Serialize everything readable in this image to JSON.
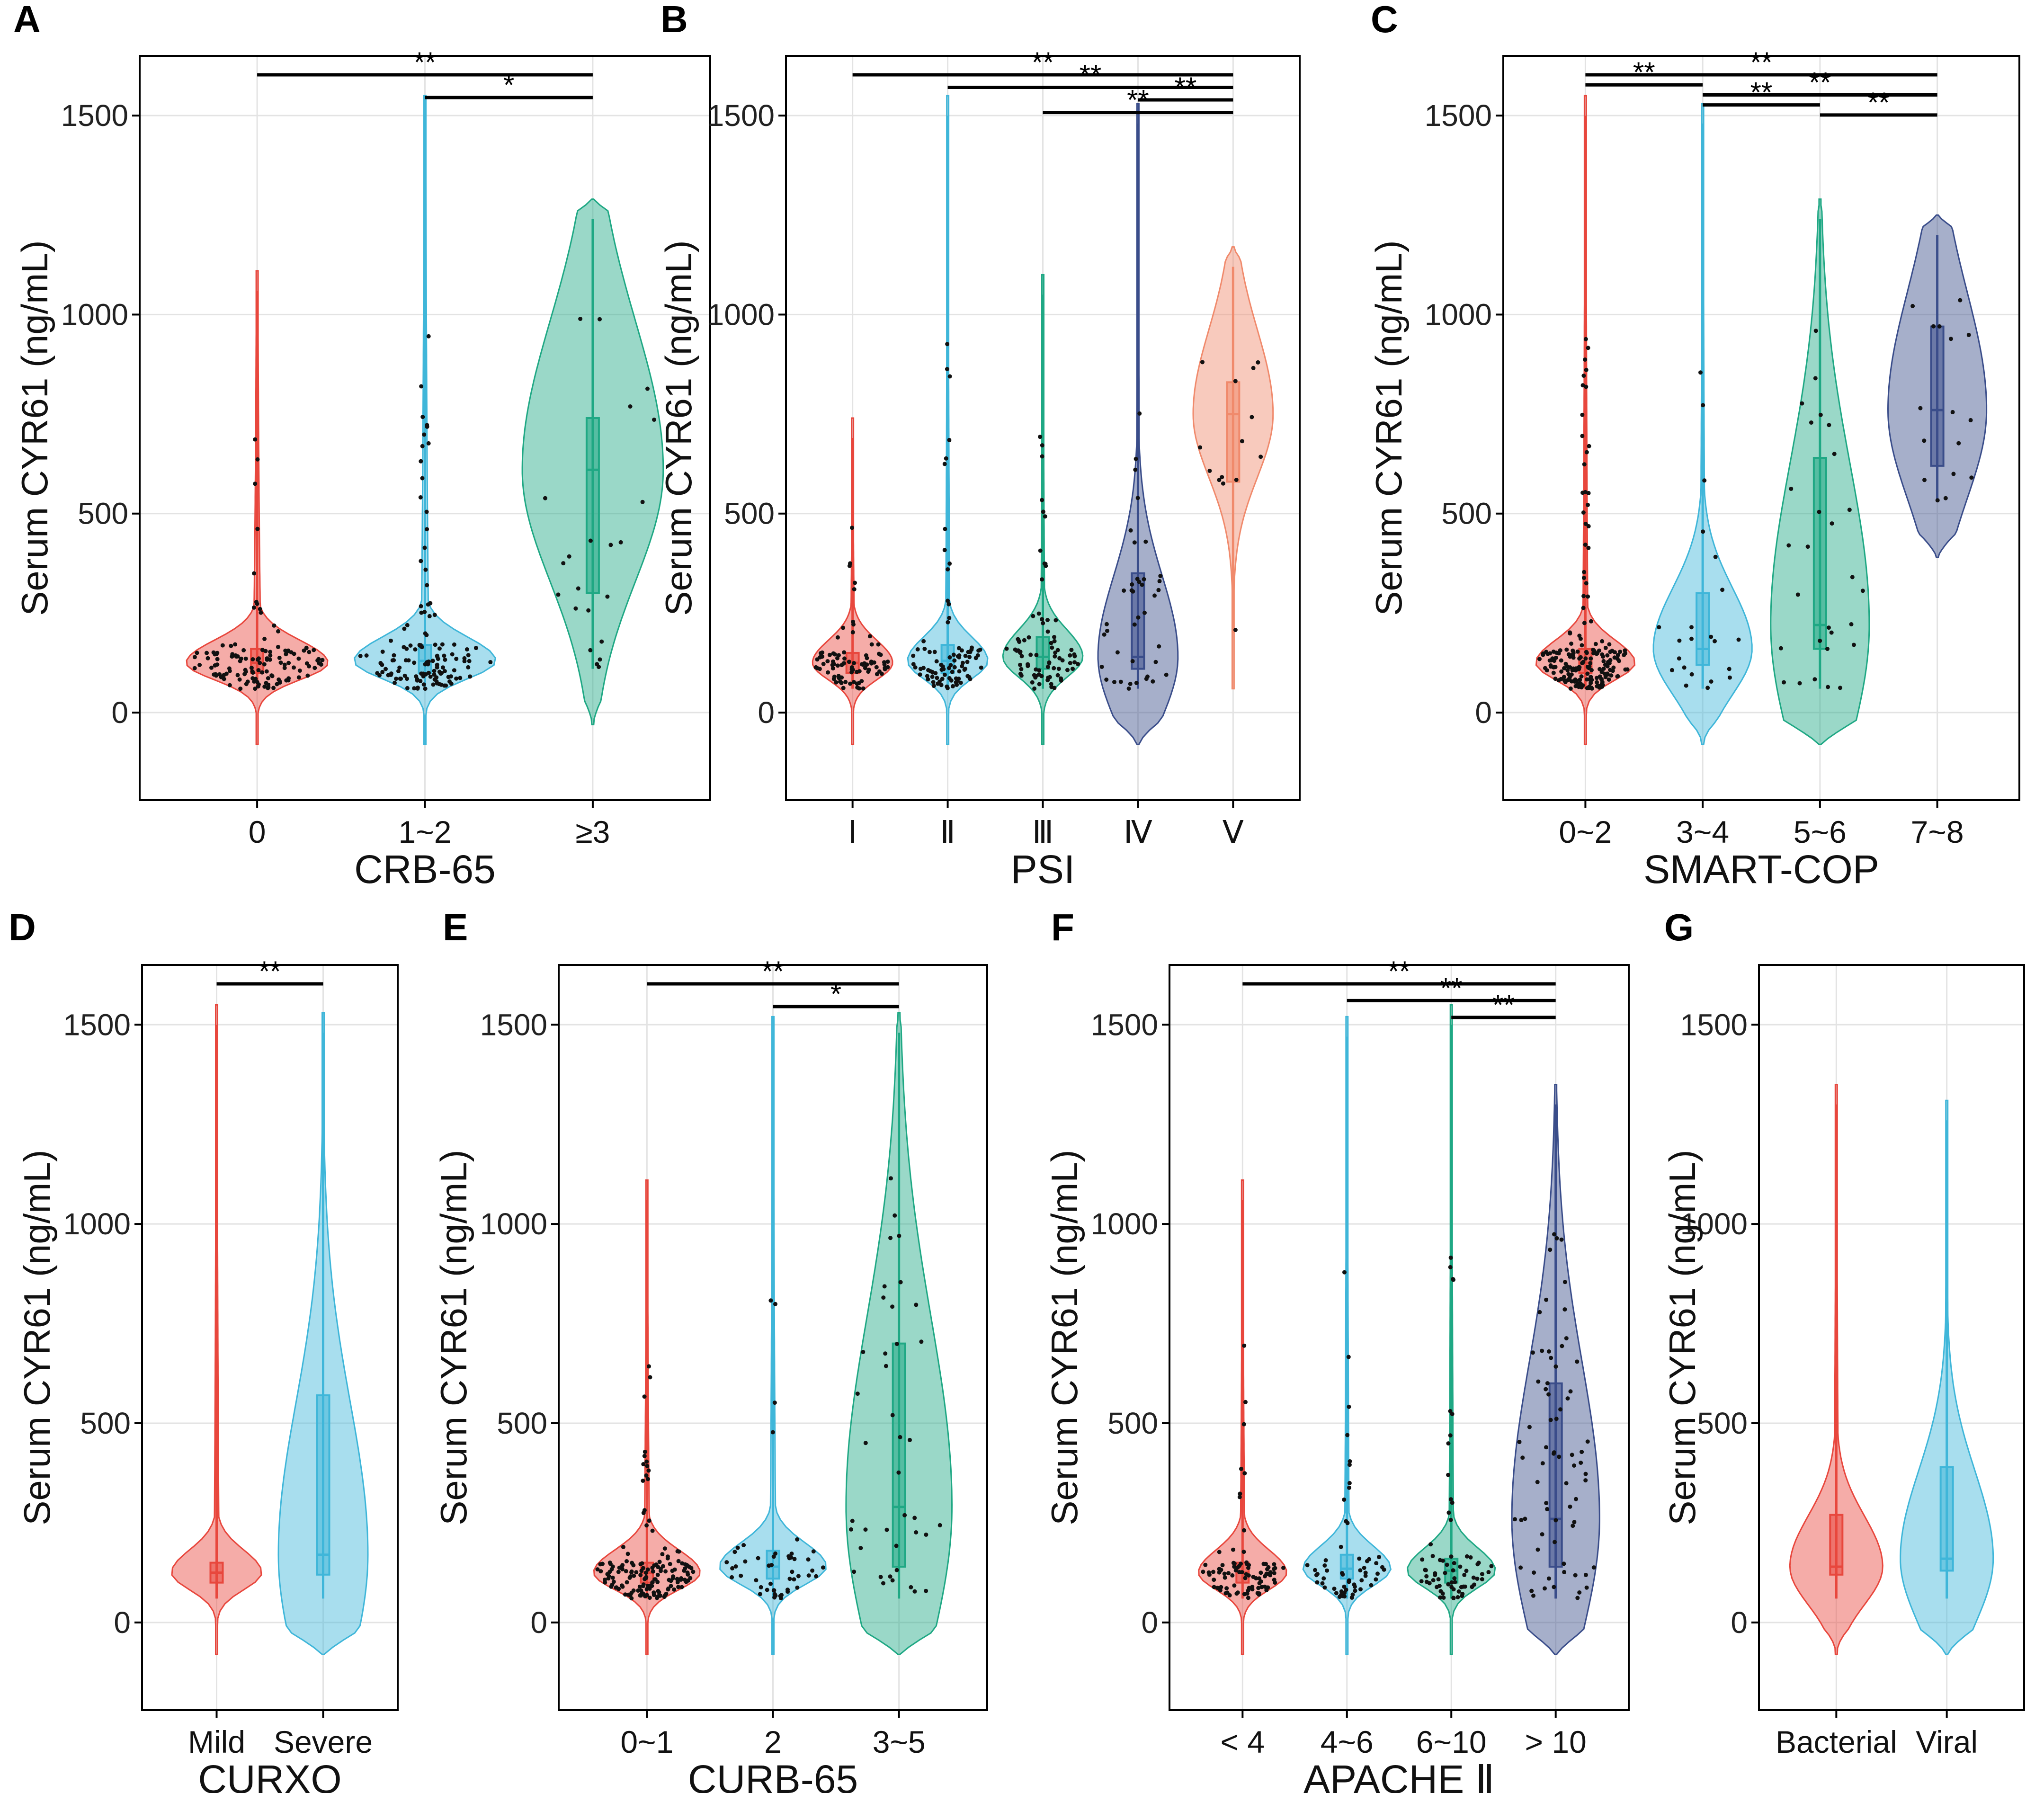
{
  "figure": {
    "colors": {
      "red": "#e8473d",
      "cyan": "#3fb6d9",
      "teal": "#1fa884",
      "navy": "#3a4d8a",
      "salmon": "#f08a6c",
      "points": "#111111"
    }
  },
  "chart_data": [
    {
      "panel": "A",
      "type": "violin",
      "xlabel": "CRB-65",
      "ylabel": "Serum CYR61 (ng/mL)",
      "ylim": [
        -220,
        1650
      ],
      "yticks": [
        0,
        500,
        1000,
        1500
      ],
      "categories": [
        "0",
        "1~2",
        "≥3"
      ],
      "series": [
        {
          "name": "0",
          "color": "red",
          "min": 60,
          "q1": 100,
          "median": 125,
          "q3": 160,
          "max": 1060,
          "n": 130
        },
        {
          "name": "1~2",
          "color": "cyan",
          "min": 60,
          "q1": 100,
          "median": 130,
          "q3": 170,
          "max": 1500,
          "n": 130
        },
        {
          "name": "≥3",
          "color": "teal",
          "min": 110,
          "q1": 300,
          "median": 610,
          "q3": 740,
          "max": 1240,
          "n": 22
        }
      ],
      "significance": [
        {
          "from": 0,
          "to": 2,
          "label": "**"
        },
        {
          "from": 1,
          "to": 2,
          "label": "*"
        }
      ]
    },
    {
      "panel": "B",
      "type": "violin",
      "xlabel": "PSI",
      "ylabel": "Serum CYR61 (ng/mL)",
      "ylim": [
        -220,
        1650
      ],
      "yticks": [
        0,
        500,
        1000,
        1500
      ],
      "categories": [
        "Ⅰ",
        "Ⅱ",
        "Ⅲ",
        "Ⅳ",
        "Ⅴ"
      ],
      "series": [
        {
          "name": "Ⅰ",
          "color": "red",
          "min": 60,
          "q1": 100,
          "median": 125,
          "q3": 150,
          "max": 690,
          "n": 90
        },
        {
          "name": "Ⅱ",
          "color": "cyan",
          "min": 60,
          "q1": 100,
          "median": 130,
          "q3": 170,
          "max": 1500,
          "n": 90
        },
        {
          "name": "Ⅲ",
          "color": "teal",
          "min": 60,
          "q1": 110,
          "median": 140,
          "q3": 190,
          "max": 1050,
          "n": 80
        },
        {
          "name": "Ⅳ",
          "color": "navy",
          "min": 60,
          "q1": 110,
          "median": 140,
          "q3": 350,
          "max": 1480,
          "n": 40
        },
        {
          "name": "Ⅴ",
          "color": "salmon",
          "min": 200,
          "q1": 580,
          "median": 750,
          "q3": 830,
          "max": 1120,
          "n": 14
        }
      ],
      "significance": [
        {
          "from": 0,
          "to": 4,
          "label": "**"
        },
        {
          "from": 1,
          "to": 4,
          "label": "**"
        },
        {
          "from": 3,
          "to": 4,
          "label": "**"
        },
        {
          "from": 2,
          "to": 4,
          "label": "**"
        }
      ]
    },
    {
      "panel": "C",
      "type": "violin",
      "xlabel": "SMART-COP",
      "ylabel": "Serum CYR61 (ng/mL)",
      "ylim": [
        -220,
        1650
      ],
      "yticks": [
        0,
        500,
        1000,
        1500
      ],
      "categories": [
        "0~2",
        "3~4",
        "5~6",
        "7~8"
      ],
      "series": [
        {
          "name": "0~2",
          "color": "red",
          "min": 60,
          "q1": 100,
          "median": 125,
          "q3": 160,
          "max": 1500,
          "n": 200
        },
        {
          "name": "3~4",
          "color": "cyan",
          "min": 60,
          "q1": 120,
          "median": 160,
          "q3": 300,
          "max": 1480,
          "n": 22
        },
        {
          "name": "5~6",
          "color": "teal",
          "min": 60,
          "q1": 160,
          "median": 220,
          "q3": 640,
          "max": 1240,
          "n": 28
        },
        {
          "name": "7~8",
          "color": "navy",
          "min": 530,
          "q1": 620,
          "median": 760,
          "q3": 970,
          "max": 1200,
          "n": 16
        }
      ],
      "significance": [
        {
          "from": 0,
          "to": 3,
          "label": "**"
        },
        {
          "from": 0,
          "to": 1,
          "label": "**"
        },
        {
          "from": 1,
          "to": 3,
          "label": "**"
        },
        {
          "from": 1,
          "to": 2,
          "label": "**"
        },
        {
          "from": 2,
          "to": 3,
          "label": "**"
        }
      ]
    },
    {
      "panel": "D",
      "type": "violin",
      "xlabel": "CURXO",
      "ylabel": "Serum CYR61 (ng/mL)",
      "ylim": [
        -220,
        1650
      ],
      "yticks": [
        0,
        500,
        1000,
        1500
      ],
      "categories": [
        "Mild",
        "Severe"
      ],
      "series": [
        {
          "name": "Mild",
          "color": "red",
          "min": 60,
          "q1": 100,
          "median": 125,
          "q3": 150,
          "max": 1500,
          "n": 0
        },
        {
          "name": "Severe",
          "color": "cyan",
          "min": 60,
          "q1": 120,
          "median": 170,
          "q3": 570,
          "max": 1480,
          "n": 0
        }
      ],
      "significance": [
        {
          "from": 0,
          "to": 1,
          "label": "**"
        }
      ]
    },
    {
      "panel": "E",
      "type": "violin",
      "xlabel": "CURB-65",
      "ylabel": "Serum CYR61 (ng/mL)",
      "ylim": [
        -220,
        1650
      ],
      "yticks": [
        0,
        500,
        1000,
        1500
      ],
      "categories": [
        "0~1",
        "2",
        "3~5"
      ],
      "series": [
        {
          "name": "0~1",
          "color": "red",
          "min": 60,
          "q1": 100,
          "median": 125,
          "q3": 150,
          "max": 1060,
          "n": 160
        },
        {
          "name": "2",
          "color": "cyan",
          "min": 60,
          "q1": 110,
          "median": 140,
          "q3": 180,
          "max": 1470,
          "n": 50
        },
        {
          "name": "3~5",
          "color": "teal",
          "min": 60,
          "q1": 140,
          "median": 290,
          "q3": 700,
          "max": 1480,
          "n": 40
        }
      ],
      "significance": [
        {
          "from": 0,
          "to": 2,
          "label": "**"
        },
        {
          "from": 1,
          "to": 2,
          "label": "*"
        }
      ]
    },
    {
      "panel": "F",
      "type": "violin",
      "xlabel": "APACHE Ⅱ",
      "ylabel": "Serum CYR61 (ng/mL)",
      "ylim": [
        -220,
        1650
      ],
      "yticks": [
        0,
        500,
        1000,
        1500
      ],
      "categories": [
        "< 4",
        "4~6",
        "6~10",
        "> 10"
      ],
      "series": [
        {
          "name": "< 4",
          "color": "red",
          "min": 60,
          "q1": 100,
          "median": 125,
          "q3": 150,
          "max": 1060,
          "n": 90
        },
        {
          "name": "4~6",
          "color": "cyan",
          "min": 60,
          "q1": 110,
          "median": 135,
          "q3": 170,
          "max": 1470,
          "n": 60
        },
        {
          "name": "6~10",
          "color": "teal",
          "min": 60,
          "q1": 100,
          "median": 130,
          "q3": 160,
          "max": 1500,
          "n": 70
        },
        {
          "name": "> 10",
          "color": "navy",
          "min": 60,
          "q1": 140,
          "median": 260,
          "q3": 600,
          "max": 1300,
          "n": 70
        }
      ],
      "significance": [
        {
          "from": 0,
          "to": 3,
          "label": "**"
        },
        {
          "from": 1,
          "to": 3,
          "label": "**"
        },
        {
          "from": 2,
          "to": 3,
          "label": "**"
        }
      ]
    },
    {
      "panel": "G",
      "type": "violin",
      "xlabel": "",
      "ylabel": "Serum CYR61 (ng/mL)",
      "ylim": [
        -220,
        1650
      ],
      "yticks": [
        0,
        500,
        1000,
        1500
      ],
      "categories": [
        "Bacterial",
        "Viral"
      ],
      "series": [
        {
          "name": "Bacterial",
          "color": "red",
          "min": 60,
          "q1": 120,
          "median": 140,
          "q3": 270,
          "max": 1300,
          "n": 0
        },
        {
          "name": "Viral",
          "color": "cyan",
          "min": 60,
          "q1": 130,
          "median": 160,
          "q3": 390,
          "max": 1260,
          "n": 0
        }
      ],
      "significance": []
    }
  ]
}
